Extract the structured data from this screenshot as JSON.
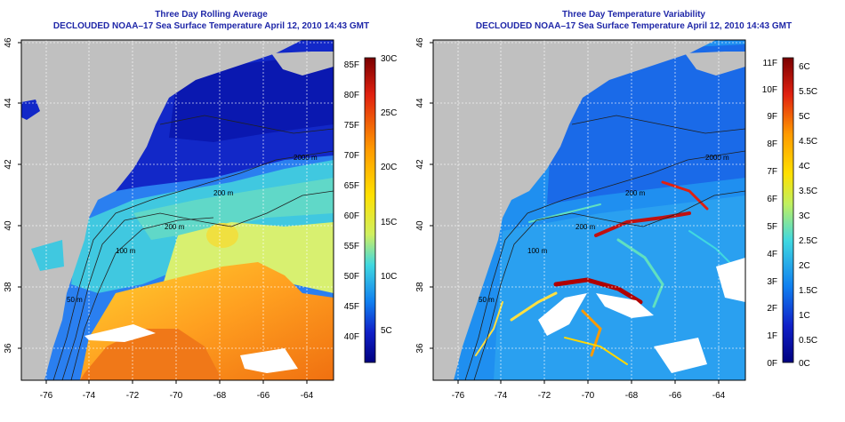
{
  "panels": [
    {
      "title_line1": "Three Day Rolling Average",
      "title_line2": "DECLOUDED NOAA–17 Sea Surface Temperature April 12, 2010 14:43 GMT",
      "lat_ticks": [
        "46",
        "44",
        "42",
        "40",
        "38",
        "36"
      ],
      "lon_ticks": [
        "-76",
        "-74",
        "-72",
        "-70",
        "-68",
        "-66",
        "-64"
      ],
      "contour_labels": [
        "200 m",
        "2000 m",
        "200 m",
        "100 m",
        "50 m"
      ],
      "colorbar": {
        "fahrenheit_labels": [
          "85F",
          "80F",
          "75F",
          "70F",
          "65F",
          "60F",
          "55F",
          "50F",
          "45F",
          "40F"
        ],
        "celsius_labels": [
          "30C",
          "25C",
          "20C",
          "15C",
          "10C",
          "5C"
        ],
        "colors": [
          "#8b0000",
          "#e02010",
          "#ff8c00",
          "#ffd700",
          "#ffff40",
          "#60e0c0",
          "#20c0f0",
          "#1060f0",
          "#1010c0",
          "#000080"
        ]
      }
    },
    {
      "title_line1": "Three Day Temperature Variability",
      "title_line2": "DECLOUDED NOAA–17 Sea Surface Temperature April 12, 2010 14:43 GMT",
      "lat_ticks": [
        "46",
        "44",
        "42",
        "40",
        "38",
        "36"
      ],
      "lon_ticks": [
        "-76",
        "-74",
        "-72",
        "-70",
        "-68",
        "-66",
        "-64"
      ],
      "contour_labels": [
        "200 m",
        "2000 m",
        "200 m",
        "100 m",
        "50 m"
      ],
      "colorbar": {
        "fahrenheit_labels": [
          "11F",
          "10F",
          "9F",
          "8F",
          "7F",
          "6F",
          "5F",
          "4F",
          "3F",
          "2F",
          "1F",
          "0F"
        ],
        "celsius_labels": [
          "6C",
          "5.5C",
          "5C",
          "4.5C",
          "4C",
          "3.5C",
          "3C",
          "2.5C",
          "2C",
          "1.5C",
          "1C",
          "0.5C",
          "0C"
        ],
        "colors": [
          "#8b0000",
          "#e02010",
          "#ff8c00",
          "#ffd700",
          "#ffff40",
          "#60e0c0",
          "#20c0f0",
          "#1060f0",
          "#1010c0",
          "#000080"
        ]
      }
    }
  ]
}
